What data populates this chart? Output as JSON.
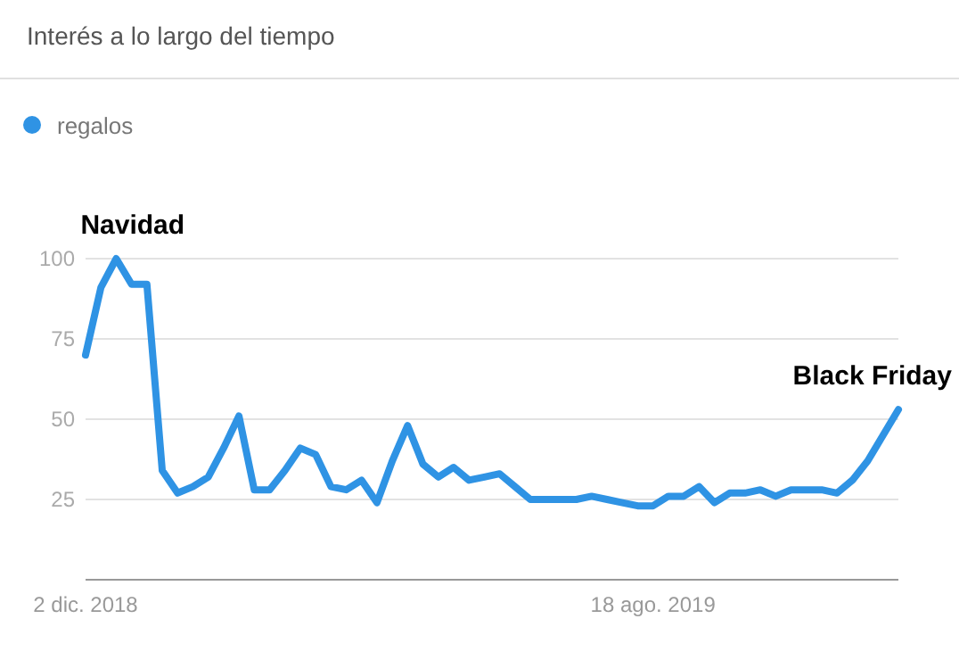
{
  "chart_data": {
    "type": "line",
    "title": "Interés a lo largo del tiempo",
    "x": [
      "2018-12-02",
      "2018-12-09",
      "2018-12-16",
      "2018-12-23",
      "2018-12-30",
      "2019-01-06",
      "2019-01-13",
      "2019-01-20",
      "2019-01-27",
      "2019-02-03",
      "2019-02-10",
      "2019-02-17",
      "2019-02-24",
      "2019-03-03",
      "2019-03-10",
      "2019-03-17",
      "2019-03-24",
      "2019-03-31",
      "2019-04-07",
      "2019-04-14",
      "2019-04-21",
      "2019-04-28",
      "2019-05-05",
      "2019-05-12",
      "2019-05-19",
      "2019-05-26",
      "2019-06-02",
      "2019-06-09",
      "2019-06-16",
      "2019-06-23",
      "2019-06-30",
      "2019-07-07",
      "2019-07-14",
      "2019-07-21",
      "2019-07-28",
      "2019-08-04",
      "2019-08-11",
      "2019-08-18",
      "2019-08-25",
      "2019-09-01",
      "2019-09-08",
      "2019-09-15",
      "2019-09-22",
      "2019-09-29",
      "2019-10-06",
      "2019-10-13",
      "2019-10-20",
      "2019-10-27",
      "2019-11-03",
      "2019-11-10",
      "2019-11-17",
      "2019-11-24",
      "2019-12-01",
      "2019-12-08"
    ],
    "series": [
      {
        "name": "regalos",
        "color": "#2f93e4",
        "values": [
          70,
          91,
          100,
          92,
          92,
          34,
          27,
          29,
          32,
          41,
          51,
          28,
          28,
          34,
          41,
          39,
          29,
          28,
          31,
          24,
          37,
          48,
          36,
          32,
          35,
          31,
          32,
          33,
          29,
          25,
          25,
          25,
          25,
          26,
          25,
          24,
          23,
          23,
          26,
          26,
          29,
          24,
          27,
          27,
          28,
          26,
          28,
          28,
          28,
          27,
          31,
          37,
          45,
          53
        ]
      }
    ],
    "xlim": [
      "2018-12-02",
      "2019-12-08"
    ],
    "xticks": [
      {
        "value": "2018-12-02",
        "label": "2 dic. 2018"
      },
      {
        "value": "2019-08-18",
        "label": "18 ago. 2019"
      }
    ],
    "ylim": [
      0,
      100
    ],
    "yticks": [
      25,
      50,
      75,
      100
    ],
    "grid": "y",
    "legend": "top left",
    "marker": "none",
    "line_style": "solid",
    "annotations": [
      {
        "text": "Navidad",
        "x": "2018-12-16",
        "y": 100
      },
      {
        "text": "Black Friday",
        "x": "2019-12-08",
        "y": 53
      }
    ]
  }
}
